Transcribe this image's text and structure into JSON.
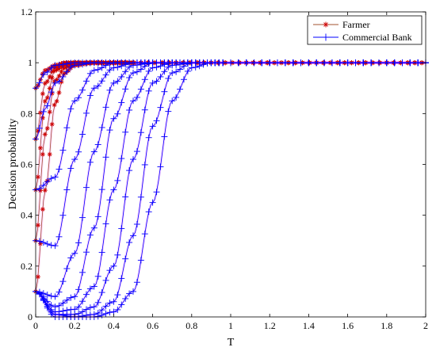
{
  "chart_data": {
    "type": "line",
    "title": "",
    "xlabel": "T",
    "ylabel": "Decision probability",
    "xlim": [
      0,
      2
    ],
    "ylim": [
      0,
      1.2
    ],
    "xticks": [
      "0",
      "0.2",
      "0.4",
      "0.6",
      "0.8",
      "1",
      "1.2",
      "1.4",
      "1.6",
      "1.8",
      "2"
    ],
    "yticks": [
      "0",
      "0.2",
      "0.4",
      "0.6",
      "0.8",
      "1",
      "1.2"
    ],
    "grid": false,
    "legend_position": "top-right",
    "legend": [
      "Farmer",
      "Commercial Bank"
    ],
    "colors": {
      "farmer_line": "#a0522d",
      "farmer_marker": "#cc0000",
      "bank": "#0000ff",
      "fringe": "#ff66ff"
    },
    "series": [
      {
        "name": "Farmer",
        "marker": "asterisk",
        "curves": [
          {
            "x": [
              0,
              0.05,
              0.1,
              0.15,
              0.2,
              0.3,
              2
            ],
            "y": [
              0.1,
              0.5,
              0.84,
              0.96,
              0.99,
              1.0,
              1.0
            ]
          },
          {
            "x": [
              0,
              0.05,
              0.1,
              0.15,
              0.2,
              0.3,
              2
            ],
            "y": [
              0.3,
              0.72,
              0.93,
              0.98,
              1.0,
              1.0,
              1.0
            ]
          },
          {
            "x": [
              0,
              0.05,
              0.1,
              0.15,
              0.2,
              0.3,
              2
            ],
            "y": [
              0.5,
              0.85,
              0.97,
              0.99,
              1.0,
              1.0,
              1.0
            ]
          },
          {
            "x": [
              0,
              0.05,
              0.1,
              0.15,
              0.2,
              0.3,
              2
            ],
            "y": [
              0.7,
              0.92,
              0.98,
              1.0,
              1.0,
              1.0,
              1.0
            ]
          },
          {
            "x": [
              0,
              0.05,
              0.1,
              0.15,
              0.2,
              0.3,
              2
            ],
            "y": [
              0.9,
              0.97,
              0.99,
              1.0,
              1.0,
              1.0,
              1.0
            ]
          }
        ]
      },
      {
        "name": "Commercial Bank",
        "marker": "plus",
        "curves": [
          {
            "x": [
              0,
              0.05,
              0.1,
              0.2,
              0.3,
              0.4,
              0.5,
              2
            ],
            "y": [
              0.9,
              0.96,
              0.99,
              1.0,
              1.0,
              1.0,
              1.0,
              1.0
            ]
          },
          {
            "x": [
              0,
              0.05,
              0.1,
              0.2,
              0.3,
              0.4,
              0.5,
              2
            ],
            "y": [
              0.7,
              0.82,
              0.92,
              0.99,
              1.0,
              1.0,
              1.0,
              1.0
            ]
          },
          {
            "x": [
              0,
              0.1,
              0.2,
              0.3,
              0.4,
              0.5,
              0.6,
              2
            ],
            "y": [
              0.5,
              0.55,
              0.85,
              0.97,
              1.0,
              1.0,
              1.0,
              1.0
            ]
          },
          {
            "x": [
              0,
              0.1,
              0.2,
              0.3,
              0.4,
              0.5,
              0.6,
              2
            ],
            "y": [
              0.3,
              0.28,
              0.62,
              0.9,
              0.98,
              1.0,
              1.0,
              1.0
            ]
          },
          {
            "x": [
              0,
              0.1,
              0.2,
              0.3,
              0.4,
              0.5,
              0.6,
              0.7,
              2
            ],
            "y": [
              0.1,
              0.08,
              0.25,
              0.65,
              0.92,
              0.99,
              1.0,
              1.0,
              1.0
            ]
          },
          {
            "x": [
              0,
              0.1,
              0.2,
              0.3,
              0.4,
              0.5,
              0.6,
              0.7,
              2
            ],
            "y": [
              0.1,
              0.04,
              0.08,
              0.35,
              0.78,
              0.96,
              1.0,
              1.0,
              1.0
            ]
          },
          {
            "x": [
              0,
              0.1,
              0.2,
              0.3,
              0.4,
              0.5,
              0.6,
              0.7,
              0.8,
              2
            ],
            "y": [
              0.1,
              0.02,
              0.03,
              0.12,
              0.5,
              0.85,
              0.98,
              1.0,
              1.0,
              1.0
            ]
          },
          {
            "x": [
              0,
              0.1,
              0.2,
              0.3,
              0.4,
              0.5,
              0.6,
              0.7,
              0.8,
              2
            ],
            "y": [
              0.1,
              0.01,
              0.01,
              0.04,
              0.2,
              0.62,
              0.92,
              0.99,
              1.0,
              1.0
            ]
          },
          {
            "x": [
              0,
              0.1,
              0.2,
              0.3,
              0.4,
              0.5,
              0.6,
              0.7,
              0.8,
              0.9,
              2
            ],
            "y": [
              0.1,
              0.01,
              0.0,
              0.01,
              0.06,
              0.32,
              0.75,
              0.96,
              1.0,
              1.0,
              1.0
            ]
          },
          {
            "x": [
              0,
              0.1,
              0.2,
              0.3,
              0.4,
              0.5,
              0.6,
              0.7,
              0.8,
              0.9,
              2
            ],
            "y": [
              0.1,
              0.0,
              0.0,
              0.0,
              0.02,
              0.1,
              0.45,
              0.85,
              0.98,
              1.0,
              1.0
            ]
          }
        ]
      }
    ]
  }
}
